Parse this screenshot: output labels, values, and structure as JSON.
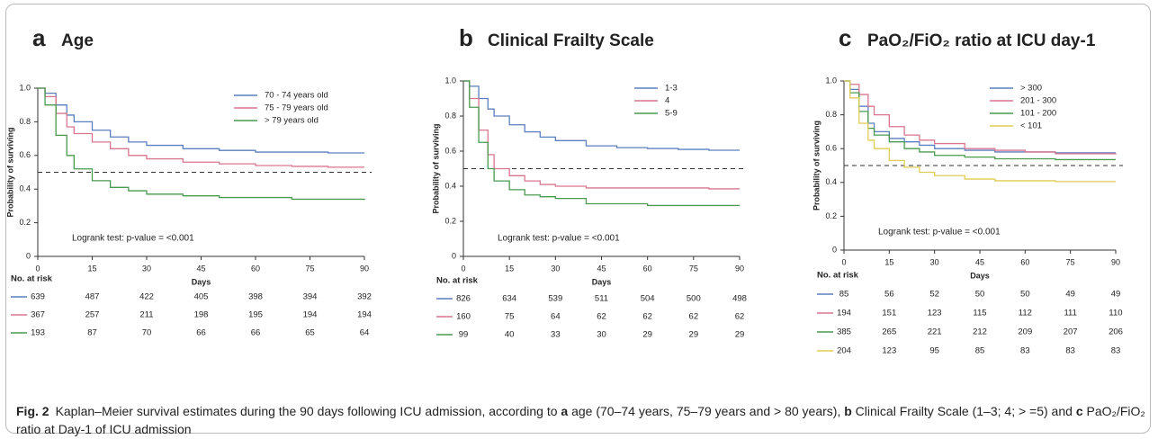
{
  "chart_data": [
    {
      "type": "line",
      "step": true,
      "panel": "a",
      "title": "Age",
      "xlabel": "Days",
      "ylabel": "Probability of surviving",
      "x": [
        0,
        2,
        5,
        8,
        10,
        15,
        20,
        25,
        30,
        40,
        50,
        60,
        70,
        80,
        90
      ],
      "series": [
        {
          "name": "70 - 74 years old",
          "color": "#5b7fbf",
          "values": [
            1,
            0.97,
            0.9,
            0.84,
            0.8,
            0.75,
            0.71,
            0.68,
            0.66,
            0.64,
            0.63,
            0.62,
            0.62,
            0.615,
            0.615
          ]
        },
        {
          "name": "75 - 79 years old",
          "color": "#d9768f",
          "values": [
            1,
            0.95,
            0.85,
            0.77,
            0.73,
            0.68,
            0.64,
            0.6,
            0.58,
            0.56,
            0.55,
            0.54,
            0.535,
            0.53,
            0.53
          ]
        },
        {
          "name": "> 79 years old",
          "color": "#4a9a50",
          "values": [
            1,
            0.9,
            0.72,
            0.6,
            0.52,
            0.45,
            0.41,
            0.39,
            0.37,
            0.36,
            0.35,
            0.35,
            0.34,
            0.34,
            0.335
          ]
        }
      ],
      "xlim": [
        0,
        90
      ],
      "xticks": [
        0,
        15,
        30,
        45,
        60,
        75,
        90
      ],
      "ylim": [
        0,
        1
      ],
      "yticks": [
        0,
        0.2,
        0.4,
        0.6,
        0.8,
        {
          "value": 1,
          "label": "1.0"
        }
      ],
      "reference_line": 0.5,
      "legend": "upper right",
      "annotation": "Logrank test: p-value = <0.001",
      "risk_table": {
        "title": "No. at risk",
        "rows": [
          [
            639,
            487,
            422,
            405,
            398,
            394,
            392
          ],
          [
            367,
            257,
            211,
            198,
            195,
            194,
            194
          ],
          [
            193,
            87,
            70,
            66,
            66,
            65,
            64
          ]
        ]
      }
    },
    {
      "type": "line",
      "step": true,
      "panel": "b",
      "title": "Clinical Frailty Scale",
      "xlabel": "Days",
      "ylabel": "Probability of surviving",
      "x": [
        0,
        2,
        5,
        8,
        10,
        15,
        20,
        25,
        30,
        40,
        50,
        60,
        70,
        80,
        90
      ],
      "series": [
        {
          "name": "1-3",
          "color": "#5b7fbf",
          "values": [
            1,
            0.97,
            0.9,
            0.84,
            0.8,
            0.75,
            0.71,
            0.68,
            0.66,
            0.63,
            0.62,
            0.615,
            0.61,
            0.605,
            0.605
          ]
        },
        {
          "name": "4",
          "color": "#d9768f",
          "values": [
            1,
            0.9,
            0.72,
            0.58,
            0.5,
            0.46,
            0.43,
            0.41,
            0.4,
            0.39,
            0.39,
            0.39,
            0.39,
            0.385,
            0.385
          ]
        },
        {
          "name": "5-9",
          "color": "#4a9a50",
          "values": [
            1,
            0.85,
            0.65,
            0.5,
            0.43,
            0.38,
            0.35,
            0.34,
            0.33,
            0.3,
            0.3,
            0.29,
            0.29,
            0.29,
            0.29
          ]
        }
      ],
      "xlim": [
        0,
        90
      ],
      "xticks": [
        0,
        15,
        30,
        45,
        60,
        75,
        90
      ],
      "ylim": [
        0,
        1
      ],
      "yticks": [
        0,
        0.2,
        0.4,
        0.6,
        0.8,
        {
          "value": 1,
          "label": "1.0"
        }
      ],
      "reference_line": 0.5,
      "legend": "upper right",
      "annotation": "Logrank test: p-value = <0.001",
      "risk_table": {
        "title": "No. at risk",
        "rows": [
          [
            826,
            634,
            539,
            511,
            504,
            500,
            498
          ],
          [
            160,
            75,
            64,
            62,
            62,
            62,
            62
          ],
          [
            99,
            40,
            33,
            30,
            29,
            29,
            29
          ]
        ]
      }
    },
    {
      "type": "line",
      "step": true,
      "panel": "c",
      "title": "PaO₂/FiO₂ ratio at ICU day-1",
      "xlabel": "Days",
      "ylabel": "Probability of surviving",
      "x": [
        0,
        2,
        5,
        8,
        10,
        15,
        20,
        25,
        30,
        40,
        50,
        60,
        70,
        80,
        90
      ],
      "series": [
        {
          "name": "> 300",
          "color": "#5b7fbf",
          "values": [
            1,
            0.95,
            0.85,
            0.75,
            0.7,
            0.66,
            0.64,
            0.62,
            0.6,
            0.59,
            0.58,
            0.58,
            0.575,
            0.575,
            0.575
          ]
        },
        {
          "name": "201 - 300",
          "color": "#d9768f",
          "values": [
            1,
            0.98,
            0.92,
            0.85,
            0.8,
            0.73,
            0.68,
            0.65,
            0.63,
            0.6,
            0.59,
            0.58,
            0.57,
            0.57,
            0.565
          ]
        },
        {
          "name": "101 - 200",
          "color": "#4a9a50",
          "values": [
            1,
            0.93,
            0.82,
            0.72,
            0.68,
            0.64,
            0.6,
            0.58,
            0.56,
            0.55,
            0.54,
            0.54,
            0.535,
            0.535,
            0.535
          ]
        },
        {
          "name": "< 101",
          "color": "#e0cc55",
          "values": [
            1,
            0.9,
            0.75,
            0.65,
            0.6,
            0.53,
            0.49,
            0.46,
            0.44,
            0.42,
            0.41,
            0.41,
            0.405,
            0.405,
            0.405
          ]
        }
      ],
      "xlim": [
        0,
        90
      ],
      "xticks": [
        0,
        15,
        30,
        45,
        60,
        75,
        90
      ],
      "ylim": [
        0,
        1
      ],
      "yticks": [
        0,
        0.2,
        0.4,
        0.6,
        0.8,
        {
          "value": 1,
          "label": "1.0"
        }
      ],
      "reference_line": 0.5,
      "legend": "upper right",
      "annotation": "Logrank test: p-value = <0.001",
      "risk_table": {
        "title": "No. at risk",
        "rows": [
          [
            85,
            56,
            52,
            50,
            50,
            49,
            49
          ],
          [
            194,
            151,
            123,
            115,
            112,
            111,
            110
          ],
          [
            385,
            265,
            221,
            212,
            209,
            207,
            206
          ],
          [
            204,
            123,
            95,
            85,
            83,
            83,
            83
          ]
        ]
      }
    }
  ],
  "caption": {
    "label": "Fig. 2",
    "parts": [
      "Kaplan–Meier survival estimates during the 90 days following ICU admission, according to ",
      "a",
      " age (70–74 years, 75–79 years and > 80 years), ",
      "b",
      " Clinical Frailty Scale (1–3; 4; > =5) and ",
      "c",
      " PaO₂/FiO₂ ratio at Day-1 of ICU admission"
    ]
  }
}
